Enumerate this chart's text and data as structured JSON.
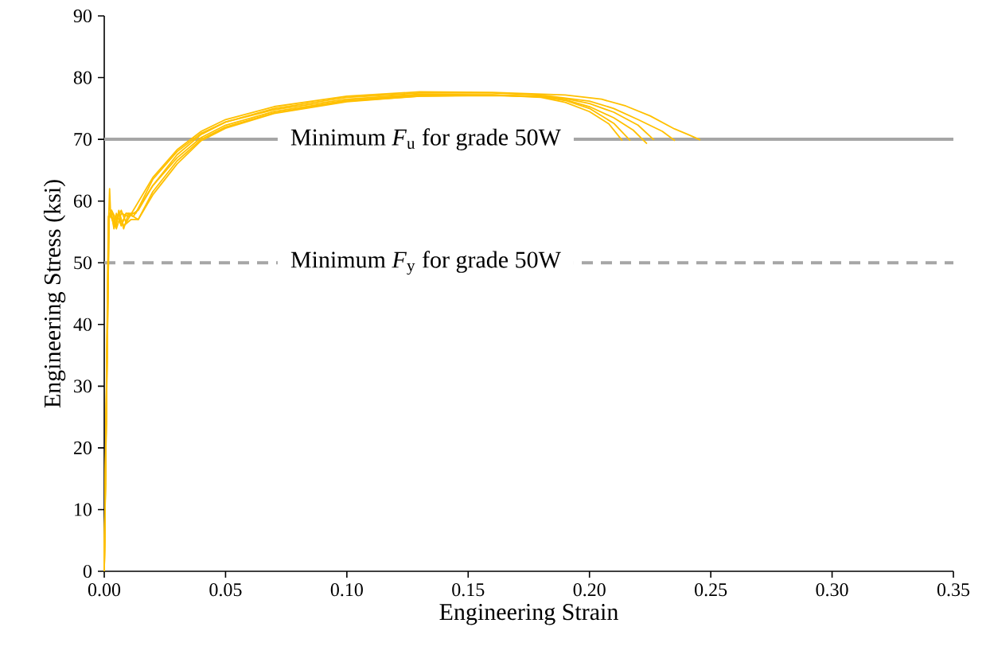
{
  "chart_data": {
    "type": "line",
    "xlabel": "Engineering  Strain",
    "ylabel": "Engineering  Stress (ksi)",
    "xlim": [
      0,
      0.35
    ],
    "ylim": [
      0,
      90
    ],
    "xticks": [
      {
        "value": 0,
        "label": "0.00"
      },
      {
        "value": 0.05,
        "label": "0.05"
      },
      {
        "value": 0.1,
        "label": "0.10"
      },
      {
        "value": 0.15,
        "label": "0.15"
      },
      {
        "value": 0.2,
        "label": "0.20"
      },
      {
        "value": 0.25,
        "label": "0.25"
      },
      {
        "value": 0.3,
        "label": "0.30"
      },
      {
        "value": 0.35,
        "label": "0.35"
      }
    ],
    "yticks": [
      0,
      10,
      20,
      30,
      40,
      50,
      60,
      70,
      80,
      90
    ],
    "grid": false,
    "ref_lines": [
      {
        "axis": "y",
        "value": 70,
        "label": "Minimum  *F*$_{u}$ for grade  50W",
        "color": "#a6a6a6",
        "line_style": "solid"
      },
      {
        "axis": "y",
        "value": 50,
        "label": "Minimum  *F*$_{y}$ for grade  50W",
        "color": "#a6a6a6",
        "line_style": "dashed"
      }
    ],
    "series": [
      {
        "color": "#ffc000",
        "x": [
          0,
          0.0018,
          0.0022,
          0.0026,
          0.004,
          0.005,
          0.007,
          0.009,
          0.013,
          0.02,
          0.03,
          0.04,
          0.05,
          0.07,
          0.1,
          0.13,
          0.16,
          0.18,
          0.19,
          0.2,
          0.208,
          0.2135
        ],
        "values": [
          0,
          57,
          62,
          58,
          56,
          58,
          56,
          58,
          58,
          63.5,
          68,
          71,
          72.8,
          74.8,
          76.5,
          77.3,
          77.2,
          76.8,
          76.0,
          74.5,
          72.5,
          69.8
        ]
      },
      {
        "color": "#ffc000",
        "x": [
          0,
          0.0018,
          0.003,
          0.004,
          0.006,
          0.007,
          0.009,
          0.012,
          0.02,
          0.03,
          0.04,
          0.05,
          0.07,
          0.1,
          0.13,
          0.16,
          0.18,
          0.19,
          0.2,
          0.21,
          0.2168
        ],
        "values": [
          0,
          57,
          58,
          55.5,
          58,
          56,
          58,
          57.5,
          62.5,
          67,
          70.3,
          72.3,
          74.5,
          76.3,
          77.2,
          77.2,
          76.9,
          76.3,
          75.0,
          72.6,
          69.8
        ]
      },
      {
        "color": "#ffc000",
        "x": [
          0,
          0.0019,
          0.003,
          0.005,
          0.006,
          0.008,
          0.01,
          0.014,
          0.02,
          0.03,
          0.04,
          0.05,
          0.07,
          0.1,
          0.13,
          0.16,
          0.18,
          0.19,
          0.2,
          0.21,
          0.218,
          0.2237
        ],
        "values": [
          0,
          57.5,
          58.5,
          56,
          58.5,
          55.5,
          58,
          57,
          61.5,
          66.5,
          70,
          72,
          74.3,
          76.2,
          77.0,
          77.1,
          76.9,
          76.4,
          75.3,
          73.5,
          71.5,
          69.3
        ]
      },
      {
        "color": "#ffc000",
        "x": [
          0,
          0.002,
          0.004,
          0.006,
          0.008,
          0.011,
          0.014,
          0.02,
          0.03,
          0.04,
          0.05,
          0.07,
          0.1,
          0.13,
          0.16,
          0.18,
          0.19,
          0.2,
          0.21,
          0.22,
          0.2266
        ],
        "values": [
          0,
          58,
          56.5,
          58,
          56,
          57,
          57,
          61,
          66,
          69.8,
          71.8,
          74.2,
          76.1,
          77.0,
          77.2,
          77.0,
          76.6,
          75.8,
          74.4,
          72.3,
          69.9
        ]
      },
      {
        "color": "#ffc000",
        "x": [
          0,
          0.002,
          0.004,
          0.005,
          0.007,
          0.01,
          0.014,
          0.02,
          0.03,
          0.04,
          0.05,
          0.07,
          0.1,
          0.13,
          0.16,
          0.18,
          0.2,
          0.21,
          0.22,
          0.23,
          0.2352
        ],
        "values": [
          0,
          58,
          57,
          55.5,
          58,
          57.5,
          58.5,
          62.5,
          67.5,
          70.8,
          72.8,
          75.0,
          76.8,
          77.5,
          77.5,
          77.2,
          76.2,
          75.0,
          73.2,
          71.3,
          69.8
        ]
      },
      {
        "color": "#ffc000",
        "x": [
          0,
          0.0017,
          0.003,
          0.005,
          0.007,
          0.009,
          0.012,
          0.02,
          0.03,
          0.04,
          0.05,
          0.07,
          0.1,
          0.13,
          0.16,
          0.19,
          0.205,
          0.215,
          0.225,
          0.235,
          0.2405,
          0.2457
        ],
        "values": [
          0,
          57.5,
          58.5,
          57,
          58.5,
          56.5,
          58.5,
          63.8,
          68.3,
          71.3,
          73.2,
          75.3,
          77.0,
          77.7,
          77.6,
          77.2,
          76.5,
          75.4,
          73.8,
          71.7,
          70.8,
          69.9
        ]
      }
    ]
  }
}
